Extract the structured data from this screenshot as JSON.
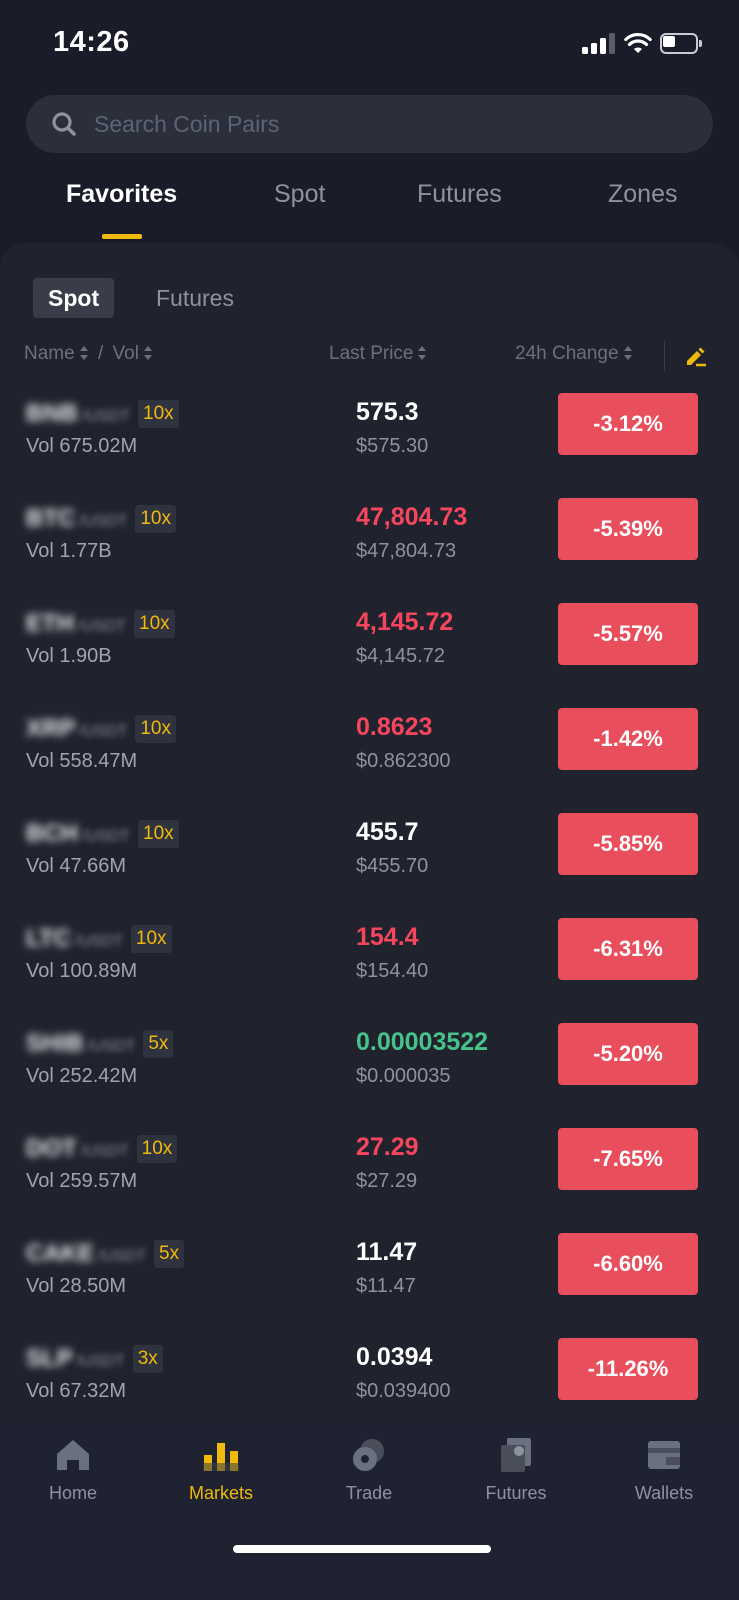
{
  "status_bar": {
    "time": "14:26"
  },
  "search": {
    "placeholder": "Search Coin Pairs"
  },
  "top_tabs": [
    {
      "label": "Favorites",
      "active": true
    },
    {
      "label": "Spot",
      "active": false
    },
    {
      "label": "Futures",
      "active": false
    },
    {
      "label": "Zones",
      "active": false
    }
  ],
  "sub_tabs": [
    {
      "label": "Spot",
      "active": true
    },
    {
      "label": "Futures",
      "active": false
    }
  ],
  "columns": {
    "name": "Name",
    "separator": "/",
    "vol": "Vol",
    "last_price": "Last Price",
    "change": "24h Change"
  },
  "rows": [
    {
      "base": "BNB",
      "quote": "/USDT",
      "leverage": "10x",
      "vol": "Vol  675.02M",
      "price": "575.3",
      "price_trend": "neutral",
      "fiat": "$575.30",
      "change": "-3.12%"
    },
    {
      "base": "BTC",
      "quote": "/USDT",
      "leverage": "10x",
      "vol": "Vol  1.77B",
      "price": "47,804.73",
      "price_trend": "down",
      "fiat": "$47,804.73",
      "change": "-5.39%"
    },
    {
      "base": "ETH",
      "quote": "/USDT",
      "leverage": "10x",
      "vol": "Vol  1.90B",
      "price": "4,145.72",
      "price_trend": "down",
      "fiat": "$4,145.72",
      "change": "-5.57%"
    },
    {
      "base": "XRP",
      "quote": "/USDT",
      "leverage": "10x",
      "vol": "Vol  558.47M",
      "price": "0.8623",
      "price_trend": "down",
      "fiat": "$0.862300",
      "change": "-1.42%"
    },
    {
      "base": "BCH",
      "quote": "/USDT",
      "leverage": "10x",
      "vol": "Vol  47.66M",
      "price": "455.7",
      "price_trend": "neutral",
      "fiat": "$455.70",
      "change": "-5.85%"
    },
    {
      "base": "LTC",
      "quote": "/USDT",
      "leverage": "10x",
      "vol": "Vol  100.89M",
      "price": "154.4",
      "price_trend": "down",
      "fiat": "$154.40",
      "change": "-6.31%"
    },
    {
      "base": "SHIB",
      "quote": "/USDT",
      "leverage": "5x",
      "vol": "Vol  252.42M",
      "price": "0.00003522",
      "price_trend": "up",
      "fiat": "$0.000035",
      "change": "-5.20%"
    },
    {
      "base": "DOT",
      "quote": "/USDT",
      "leverage": "10x",
      "vol": "Vol  259.57M",
      "price": "27.29",
      "price_trend": "down",
      "fiat": "$27.29",
      "change": "-7.65%"
    },
    {
      "base": "CAKE",
      "quote": "/USDT",
      "leverage": "5x",
      "vol": "Vol  28.50M",
      "price": "11.47",
      "price_trend": "neutral",
      "fiat": "$11.47",
      "change": "-6.60%"
    },
    {
      "base": "SLP",
      "quote": "/USDT",
      "leverage": "3x",
      "vol": "Vol  67.32M",
      "price": "0.0394",
      "price_trend": "neutral",
      "fiat": "$0.039400",
      "change": "-11.26%"
    }
  ],
  "bottom_nav": [
    {
      "label": "Home",
      "icon": "home-icon",
      "active": false
    },
    {
      "label": "Markets",
      "icon": "markets-icon",
      "active": true
    },
    {
      "label": "Trade",
      "icon": "trade-icon",
      "active": false
    },
    {
      "label": "Futures",
      "icon": "futures-icon",
      "active": false
    },
    {
      "label": "Wallets",
      "icon": "wallets-icon",
      "active": false
    }
  ],
  "colors": {
    "accent": "#f0b90b",
    "down": "#f6465d",
    "up": "#46c28a",
    "change_badge": "#e84e5c"
  }
}
